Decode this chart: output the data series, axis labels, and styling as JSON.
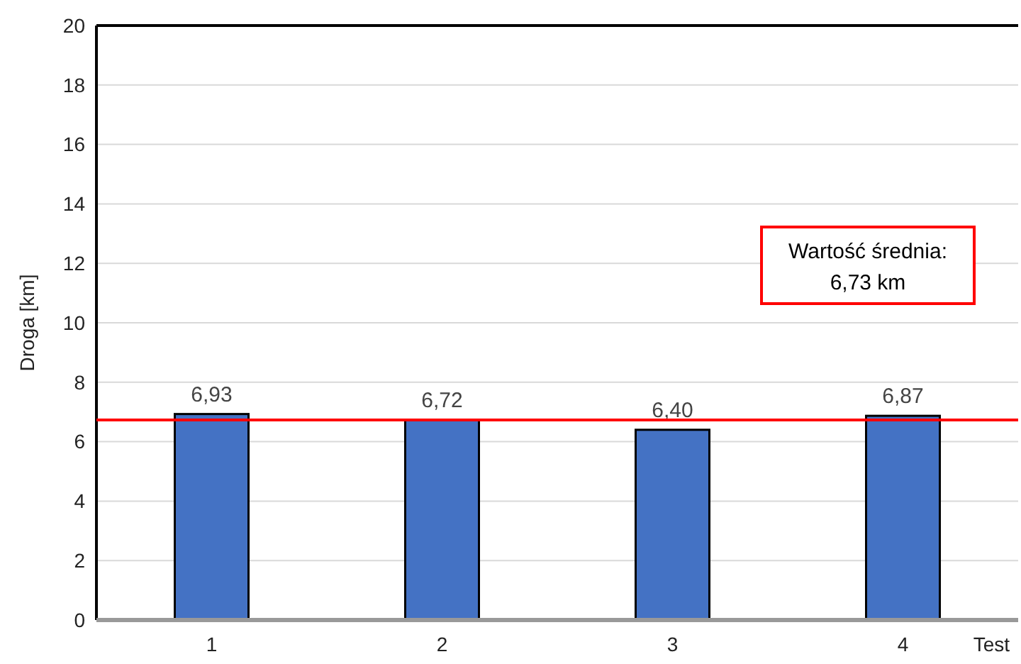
{
  "chart_data": {
    "type": "bar",
    "categories": [
      "1",
      "2",
      "3",
      "4"
    ],
    "values": [
      6.93,
      6.72,
      6.4,
      6.87
    ],
    "color": "#4472c4",
    "value_labels": [
      "6,93",
      "6,72",
      "6,40",
      "6,87"
    ],
    "xlabel": "Test",
    "ylabel": "Droga [km]",
    "ylim": [
      0,
      20
    ],
    "yticks": [
      0,
      2,
      4,
      6,
      8,
      10,
      12,
      14,
      16,
      18,
      20
    ],
    "grid": "y",
    "annotations": [
      "Wartość średnia:\n6,73 km"
    ],
    "ref_lines": [
      {
        "axis": "y",
        "value": 6.73,
        "color": "#ff0000"
      }
    ]
  }
}
